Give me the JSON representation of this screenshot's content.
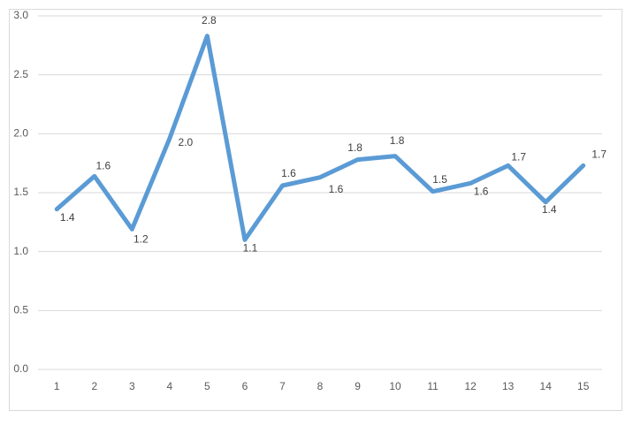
{
  "chart_data": {
    "type": "line",
    "categories": [
      "1",
      "2",
      "3",
      "4",
      "5",
      "6",
      "7",
      "8",
      "9",
      "10",
      "11",
      "12",
      "13",
      "14",
      "15"
    ],
    "series": [
      {
        "color": "#5b9bd5",
        "values": [
          1.36,
          1.64,
          1.19,
          1.96,
          2.83,
          1.1,
          1.56,
          1.63,
          1.78,
          1.81,
          1.51,
          1.58,
          1.73,
          1.42,
          1.73
        ],
        "value_labels": [
          "1.4",
          "1.6",
          "1.2",
          "2.0",
          "2.8",
          "1.1",
          "1.6",
          "1.6",
          "1.8",
          "1.8",
          "1.5",
          "1.6",
          "1.7",
          "1.4",
          "1.7"
        ]
      }
    ],
    "ylim": [
      0,
      3
    ],
    "yticks": [
      {
        "value": 0,
        "label": "0.0"
      },
      {
        "value": 0.5,
        "label": "0.5"
      },
      {
        "value": 1,
        "label": "1.0"
      },
      {
        "value": 1.5,
        "label": "1.5"
      },
      {
        "value": 2,
        "label": "2.0"
      },
      {
        "value": 2.5,
        "label": "2.5"
      },
      {
        "value": 3,
        "label": "3.0"
      }
    ],
    "grid": true
  }
}
